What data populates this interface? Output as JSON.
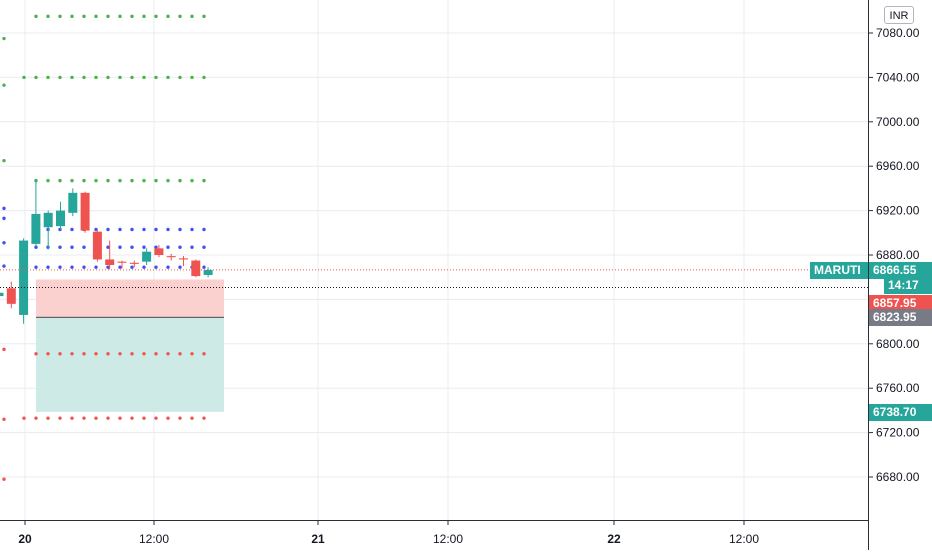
{
  "currency": "INR",
  "symbol": "MARUTI",
  "price_axis": {
    "ticks": [
      "7080.00",
      "7040.00",
      "7000.00",
      "6960.00",
      "6920.00",
      "6880.00",
      "6800.00",
      "6760.00",
      "6720.00",
      "6680.00"
    ]
  },
  "time_axis": {
    "ticks": [
      {
        "label": "20",
        "bold": true
      },
      {
        "label": "12:00",
        "bold": false
      },
      {
        "label": "21",
        "bold": true
      },
      {
        "label": "12:00",
        "bold": false
      },
      {
        "label": "22",
        "bold": true
      },
      {
        "label": "12:00",
        "bold": false
      }
    ]
  },
  "tags": {
    "symbol_label": "MARUTI",
    "last_price": "6866.55",
    "countdown": "14:17",
    "stop_price": "6857.95",
    "entry_price": "6823.95",
    "target_price": "6738.70"
  },
  "colors": {
    "up": "#26a69a",
    "down": "#ef5350",
    "pivot_green": "#4caf50",
    "pivot_blue": "#3f51f0",
    "pivot_red": "#ef5350",
    "stop_zone": "#fbd1d0",
    "target_zone": "#cdeae7",
    "entry_tag": "#787b86",
    "countdown_tag": "#26a69a"
  },
  "chart_data": {
    "type": "candlestick",
    "candles": [
      {
        "o": 6843,
        "h": 6852,
        "l": 6836,
        "c": 6846
      },
      {
        "o": 6850,
        "h": 6856,
        "l": 6832,
        "c": 6836
      },
      {
        "o": 6826,
        "h": 6895,
        "l": 6818,
        "c": 6893
      },
      {
        "o": 6890,
        "h": 6948,
        "l": 6888,
        "c": 6917
      },
      {
        "o": 6905,
        "h": 6920,
        "l": 6885,
        "c": 6918
      },
      {
        "o": 6906,
        "h": 6928,
        "l": 6903,
        "c": 6920
      },
      {
        "o": 6918,
        "h": 6940,
        "l": 6915,
        "c": 6936
      },
      {
        "o": 6936,
        "h": 6937,
        "l": 6900,
        "c": 6902
      },
      {
        "o": 6901,
        "h": 6902,
        "l": 6874,
        "c": 6876
      },
      {
        "o": 6876,
        "h": 6893,
        "l": 6867,
        "c": 6871
      },
      {
        "o": 6874,
        "h": 6875,
        "l": 6868,
        "c": 6873
      },
      {
        "o": 6873,
        "h": 6875,
        "l": 6869,
        "c": 6872
      },
      {
        "o": 6874,
        "h": 6886,
        "l": 6871,
        "c": 6883
      },
      {
        "o": 6886,
        "h": 6889,
        "l": 6878,
        "c": 6880
      },
      {
        "o": 6879,
        "h": 6881,
        "l": 6875,
        "c": 6878
      },
      {
        "o": 6877,
        "h": 6879,
        "l": 6870,
        "c": 6876
      },
      {
        "o": 6875,
        "h": 6876,
        "l": 6860,
        "c": 6861
      },
      {
        "o": 6862,
        "h": 6869,
        "l": 6860,
        "c": 6866.55
      }
    ],
    "y_range": [
      6655,
      6748
    ],
    "last_price": 6866.55,
    "position": {
      "entry": 6823.95,
      "stop": 6857.95,
      "target": 6738.7
    },
    "pivot_levels_green": [
      7095,
      7080,
      7075,
      7040,
      7033,
      6965,
      6947
    ],
    "pivot_levels_blue": [
      6922,
      6913,
      6903,
      6890,
      6887,
      6869,
      6869
    ],
    "pivot_levels_red": [
      6795,
      6791,
      6733,
      6732,
      6729,
      6678
    ]
  }
}
